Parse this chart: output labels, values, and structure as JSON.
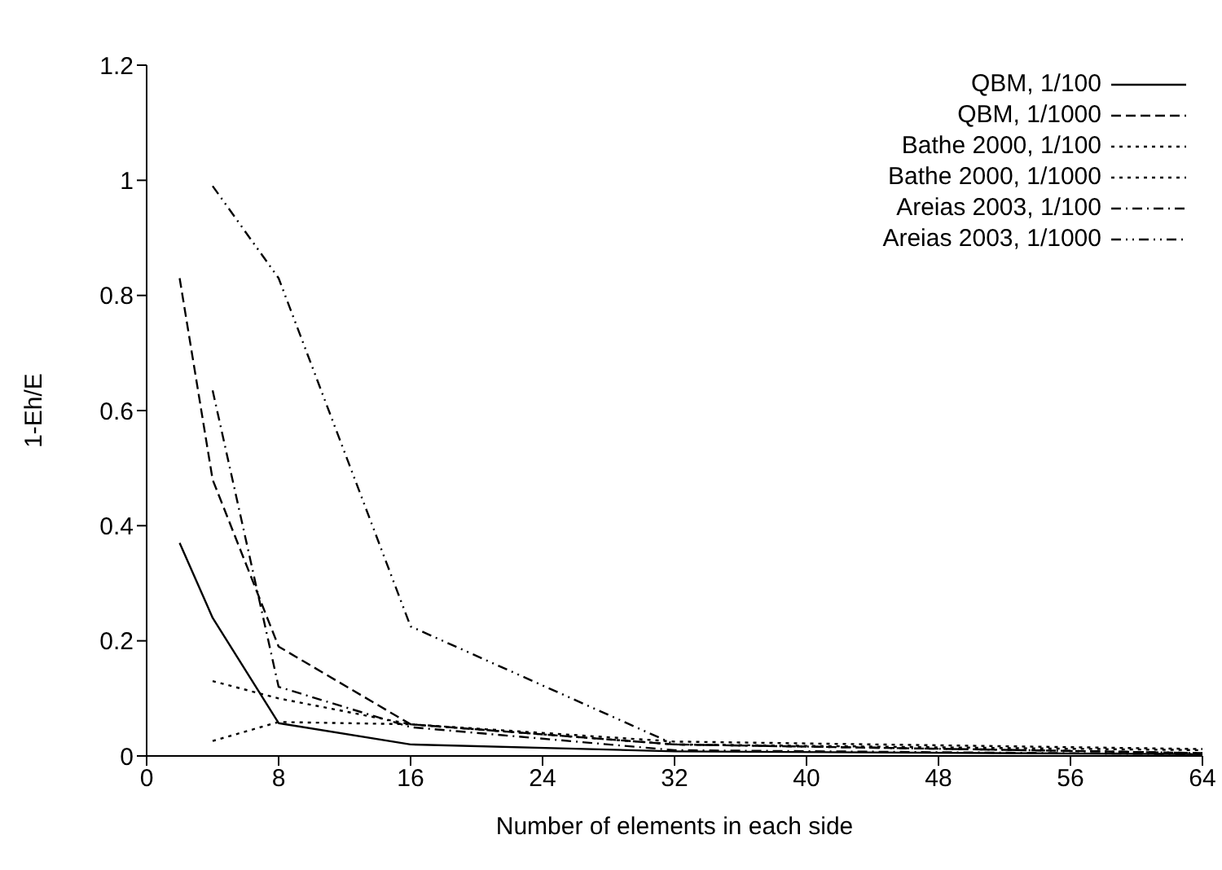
{
  "chart_data": {
    "type": "line",
    "xlabel": "Number of elements in each side",
    "ylabel": "1-Eh/E",
    "xlim": [
      0,
      64
    ],
    "xticks": [
      0,
      8,
      16,
      24,
      32,
      40,
      48,
      56,
      64
    ],
    "ylim": [
      0,
      1.2
    ],
    "yticks": [
      0,
      0.2,
      0.4,
      0.6,
      0.8,
      1,
      1.2
    ],
    "grid": false,
    "legend": "top right",
    "marker": "none",
    "series": [
      {
        "name": "QBM, 1/100",
        "color": "#000000",
        "line_style": "solid",
        "x": [
          2,
          4,
          8,
          16,
          32,
          64
        ],
        "values": [
          0.37,
          0.24,
          0.057,
          0.02,
          0.008,
          0.003
        ]
      },
      {
        "name": "QBM, 1/1000",
        "color": "#000000",
        "line_style": "dashed",
        "x": [
          2,
          4,
          8,
          16,
          32,
          64
        ],
        "values": [
          0.83,
          0.48,
          0.19,
          0.055,
          0.02,
          0.005
        ]
      },
      {
        "name": "Bathe 2000, 1/100",
        "color": "#000000",
        "line_style": "dotted",
        "x": [
          4,
          8,
          16,
          32,
          64
        ],
        "values": [
          0.13,
          0.1,
          0.055,
          0.025,
          0.012
        ]
      },
      {
        "name": "Bathe 2000, 1/1000",
        "color": "#000000",
        "line_style": "dotted",
        "x": [
          4,
          8,
          16,
          32,
          64
        ],
        "values": [
          0.026,
          0.059,
          0.055,
          0.02,
          0.01
        ]
      },
      {
        "name": "Areias 2003, 1/100",
        "color": "#000000",
        "line_style": "dashdot",
        "x": [
          4,
          8,
          16,
          32,
          64
        ],
        "values": [
          0.635,
          0.12,
          0.05,
          0.01,
          0.003
        ]
      },
      {
        "name": "Areias 2003, 1/1000",
        "color": "#000000",
        "line_style": "dashdotdot",
        "x": [
          4,
          8,
          16,
          32,
          64
        ],
        "values": [
          0.99,
          0.83,
          0.225,
          0.02,
          0.005
        ]
      }
    ]
  }
}
